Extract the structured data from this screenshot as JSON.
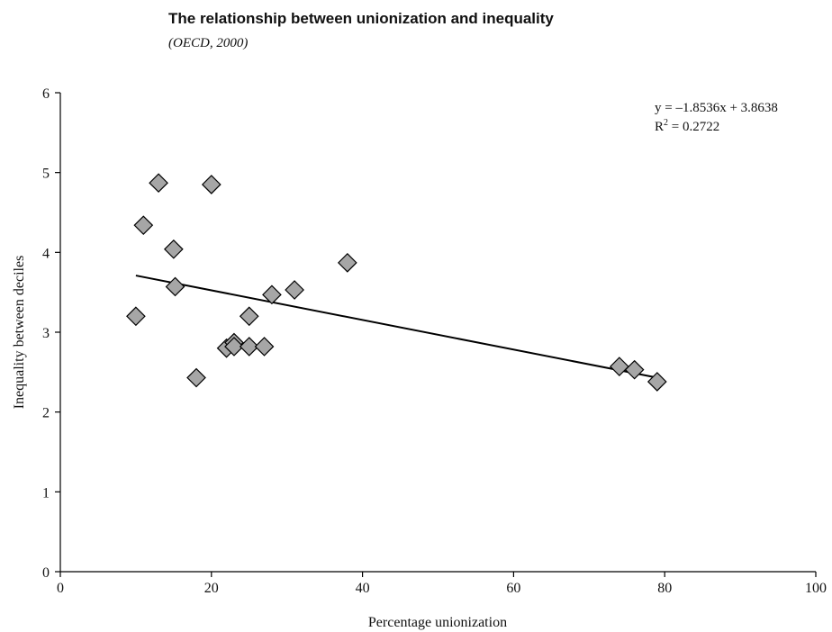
{
  "chart_data": {
    "type": "scatter",
    "title": "The relationship between unionization and inequality",
    "subtitle": "(OECD, 2000)",
    "xlabel": "Percentage unionization",
    "ylabel": "Inequality between deciles",
    "xlim": [
      0,
      100
    ],
    "ylim": [
      0,
      6
    ],
    "x_ticks": [
      0,
      20,
      40,
      60,
      80,
      100
    ],
    "y_ticks": [
      0,
      1,
      2,
      3,
      4,
      5,
      6
    ],
    "grid": false,
    "marker": "diamond",
    "marker_color": "#a6a6a6",
    "points": [
      {
        "x": 10,
        "y": 3.2
      },
      {
        "x": 11,
        "y": 4.34
      },
      {
        "x": 13,
        "y": 4.87
      },
      {
        "x": 15,
        "y": 4.04
      },
      {
        "x": 15.2,
        "y": 3.57
      },
      {
        "x": 18,
        "y": 2.43
      },
      {
        "x": 20,
        "y": 4.85
      },
      {
        "x": 22,
        "y": 2.8
      },
      {
        "x": 23,
        "y": 2.87
      },
      {
        "x": 23,
        "y": 2.82
      },
      {
        "x": 25,
        "y": 3.2
      },
      {
        "x": 25,
        "y": 2.82
      },
      {
        "x": 27,
        "y": 2.82
      },
      {
        "x": 28,
        "y": 3.47
      },
      {
        "x": 31,
        "y": 3.53
      },
      {
        "x": 38,
        "y": 3.87
      },
      {
        "x": 74,
        "y": 2.57
      },
      {
        "x": 76,
        "y": 2.53
      },
      {
        "x": 79,
        "y": 2.38
      }
    ],
    "trendline": {
      "x_range": [
        10,
        79
      ],
      "y_range": [
        3.71,
        2.43
      ]
    },
    "equation": {
      "line1": "y = –1.8536x + 3.8638",
      "line2_prefix": "R",
      "line2_sup": "2",
      "line2_suffix": " = 0.2722"
    }
  }
}
